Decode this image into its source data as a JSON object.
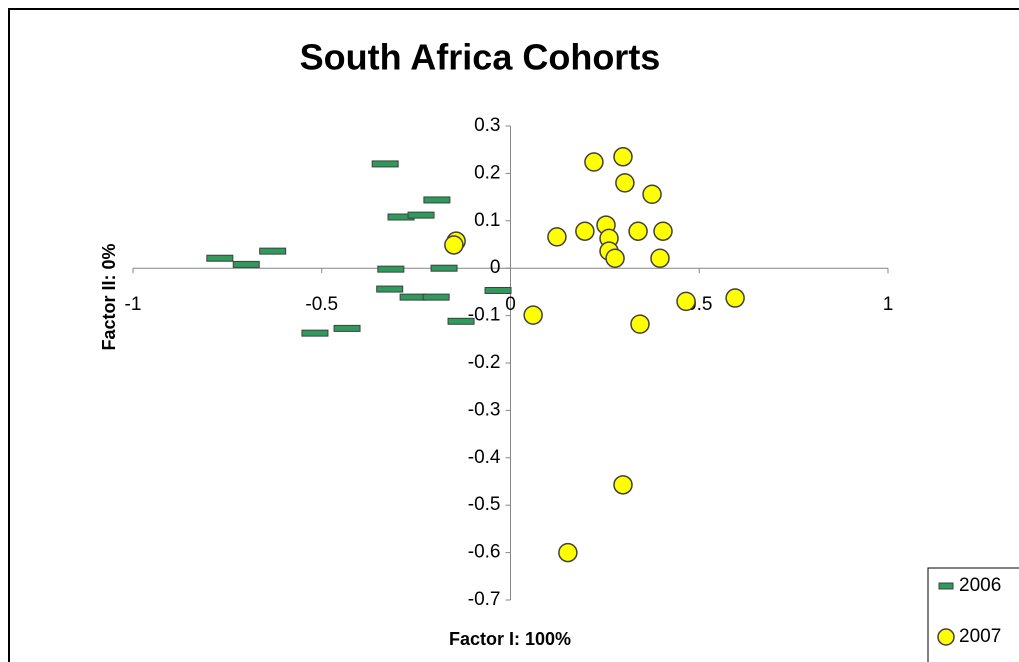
{
  "chart_data": {
    "type": "scatter",
    "title": "South Africa Cohorts",
    "x_label": "Factor I: 100%",
    "y_label": "Factor II: 0%",
    "xlim": [
      -1,
      1
    ],
    "ylim": [
      -0.7,
      0.3
    ],
    "xticks": [
      -1,
      -0.5,
      0,
      0.5,
      1
    ],
    "yticks": [
      0.3,
      0.2,
      0.1,
      0,
      -0.1,
      -0.2,
      -0.3,
      -0.4,
      -0.5,
      -0.6,
      -0.7
    ],
    "legend": "lower right",
    "series": [
      {
        "name": "2006",
        "color": "#2e9a5c",
        "marker": "dash",
        "x": [
          -0.332,
          -0.29,
          -0.237,
          -0.195,
          -0.77,
          -0.7,
          -0.63,
          -0.317,
          -0.176,
          -0.32,
          -0.258,
          -0.197,
          -0.033,
          -0.131,
          -0.433,
          -0.518
        ],
        "values": [
          0.22,
          0.108,
          0.112,
          0.144,
          0.021,
          0.008,
          0.036,
          -0.002,
          0,
          -0.044,
          -0.061,
          -0.061,
          -0.047,
          -0.112,
          -0.127,
          -0.137
        ]
      },
      {
        "name": "2007",
        "color": "#ffff00",
        "marker": "circle",
        "x": [
          0.221,
          0.298,
          0.303,
          0.375,
          0.123,
          0.197,
          0.253,
          0.261,
          0.261,
          0.277,
          0.338,
          0.404,
          0.396,
          -0.144,
          -0.15,
          0.06,
          0.465,
          0.595,
          0.343,
          0.298,
          0.152
        ],
        "values": [
          0.224,
          0.235,
          0.18,
          0.156,
          0.066,
          0.078,
          0.091,
          0.063,
          0.036,
          0.021,
          0.078,
          0.078,
          0.021,
          0.057,
          0.049,
          -0.099,
          -0.07,
          -0.063,
          -0.118,
          -0.457,
          -0.6
        ]
      }
    ]
  }
}
